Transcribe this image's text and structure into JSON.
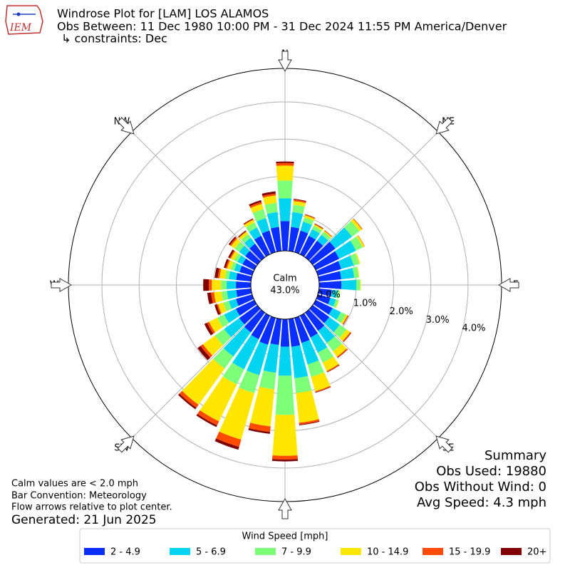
{
  "chart_data": {
    "type": "windrose",
    "title": "Windrose Plot for [LAM] LOS ALAMOS",
    "subtitle": "Obs Between: 11 Dec 1980 10:00 PM - 31 Dec 2024 11:55 PM America/Denver",
    "constraint": "↳ constraints: Dec",
    "calm_label": "Calm",
    "calm_value": "43.0%",
    "compass_labels": [
      "N",
      "NE",
      "E",
      "SE",
      "S",
      "SW",
      "W",
      "NW"
    ],
    "rlim": [
      0,
      4.9
    ],
    "rticks": [
      {
        "value": 0,
        "label": "0.0%"
      },
      {
        "value": 1,
        "label": "1.0%"
      },
      {
        "value": 2,
        "label": "2.0%"
      },
      {
        "value": 3,
        "label": "3.0%"
      },
      {
        "value": 4,
        "label": "4.0%"
      }
    ],
    "grid": true,
    "legend_title": "Wind Speed [mph]",
    "series": [
      {
        "name": "2 - 4.9",
        "color": "#0a2eff",
        "values": [
          0.8,
          0.65,
          0.6,
          0.55,
          0.55,
          0.75,
          0.7,
          0.65,
          0.6,
          0.6,
          0.35,
          0.35,
          0.5,
          0.55,
          0.6,
          0.65,
          0.7,
          0.75,
          0.74,
          0.7,
          0.75,
          0.7,
          0.65,
          0.6,
          0.55,
          0.45,
          0.4,
          0.4,
          0.4,
          0.35,
          0.35,
          0.4,
          0.45,
          0.55,
          0.6,
          0.65
        ]
      },
      {
        "name": "5 - 6.9",
        "color": "#00d4f0",
        "values": [
          0.61,
          0.4,
          0.25,
          0.2,
          0.2,
          0.55,
          0.5,
          0.35,
          0.35,
          0.4,
          0.15,
          0.15,
          0.25,
          0.35,
          0.4,
          0.45,
          0.6,
          0.85,
          0.78,
          0.75,
          0.85,
          0.9,
          0.8,
          0.5,
          0.35,
          0.2,
          0.25,
          0.25,
          0.2,
          0.15,
          0.15,
          0.2,
          0.2,
          0.25,
          0.35,
          0.4
        ]
      },
      {
        "name": "7 - 9.9",
        "color": "#7dff7a",
        "values": [
          0.48,
          0.2,
          0.12,
          0.1,
          0.1,
          0.25,
          0.2,
          0.15,
          0.12,
          0.1,
          0.06,
          0.07,
          0.15,
          0.22,
          0.28,
          0.3,
          0.35,
          0.4,
          1.05,
          0.45,
          0.5,
          0.45,
          0.4,
          0.3,
          0.2,
          0.15,
          0.15,
          0.15,
          0.1,
          0.1,
          0.1,
          0.15,
          0.12,
          0.15,
          0.25,
          0.25
        ]
      },
      {
        "name": "10 - 14.9",
        "color": "#ffe600",
        "values": [
          0.4,
          0.1,
          0.06,
          0.04,
          0.03,
          0.08,
          0.05,
          0.03,
          0.02,
          0.02,
          0.01,
          0.02,
          0.05,
          0.12,
          0.18,
          0.25,
          0.4,
          0.8,
          1.1,
          1.0,
          1.3,
          1.1,
          1.2,
          0.4,
          0.25,
          0.15,
          0.2,
          0.25,
          0.15,
          0.1,
          0.1,
          0.12,
          0.08,
          0.08,
          0.15,
          0.2
        ]
      },
      {
        "name": "15 - 19.9",
        "color": "#ff4a00",
        "values": [
          0.07,
          0.04,
          0.02,
          0.02,
          0.02,
          0.02,
          0.01,
          0,
          0,
          0,
          0,
          0,
          0.02,
          0.03,
          0.03,
          0.03,
          0.03,
          0.05,
          0.1,
          0.15,
          0.2,
          0.12,
          0.1,
          0.08,
          0.06,
          0.04,
          0.08,
          0.08,
          0.05,
          0.04,
          0.03,
          0.04,
          0.02,
          0.02,
          0.05,
          0.05
        ]
      },
      {
        "name": "20+",
        "color": "#800000",
        "values": [
          0.04,
          0.02,
          0.01,
          0.01,
          0,
          0,
          0,
          0,
          0,
          0,
          0,
          0,
          0.01,
          0.01,
          0.01,
          0.01,
          0.01,
          0.02,
          0.05,
          0.05,
          0.08,
          0.05,
          0.05,
          0.1,
          0.08,
          0.06,
          0.1,
          0.15,
          0.08,
          0.05,
          0.05,
          0.04,
          0.02,
          0.02,
          0.05,
          0.06
        ]
      }
    ],
    "summary": [
      "Summary",
      "Obs Used: 19880",
      "Obs Without Wind: 0",
      "Avg Speed: 4.3 mph"
    ],
    "notes": [
      "Calm values are < 2.0 mph",
      "Bar Convention: Meteorology",
      "Flow arrows relative to plot center."
    ],
    "generated": "Generated: 21 Jun 2025"
  }
}
